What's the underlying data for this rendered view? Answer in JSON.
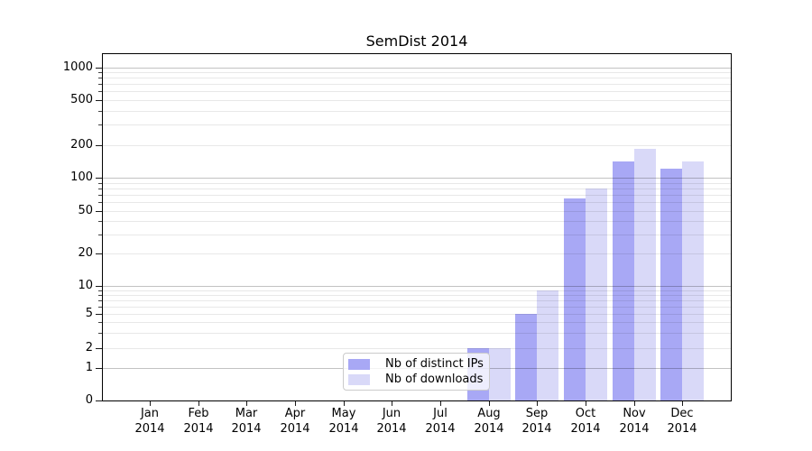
{
  "title": "SemDist 2014",
  "chart_data": {
    "type": "bar",
    "title": "SemDist 2014",
    "categories": [
      "Jan 2014",
      "Feb 2014",
      "Mar 2014",
      "Apr 2014",
      "May 2014",
      "Jun 2014",
      "Jul 2014",
      "Aug 2014",
      "Sep 2014",
      "Oct 2014",
      "Nov 2014",
      "Dec 2014"
    ],
    "series": [
      {
        "name": "Nb of distinct IPs",
        "color": "#a8a8f5",
        "values": [
          0,
          0,
          0,
          0,
          0,
          0,
          0,
          2,
          5,
          65,
          140,
          120
        ]
      },
      {
        "name": "Nb of downloads",
        "color": "#d9d9f8",
        "values": [
          0,
          0,
          0,
          0,
          0,
          0,
          0,
          2,
          9,
          80,
          185,
          140
        ]
      }
    ],
    "xlabel": "",
    "ylabel": "",
    "grid": true,
    "legend_position": "bottom-center",
    "y_axis": {
      "scale": "symlog",
      "tick_values": [
        0,
        1,
        2,
        5,
        10,
        20,
        50,
        100,
        200,
        500,
        1000
      ],
      "tick_labels": [
        "0",
        "1",
        "2",
        "5",
        "10",
        "20",
        "50",
        "100",
        "200",
        "500",
        "1000"
      ],
      "ylim": [
        0,
        1000
      ]
    }
  }
}
